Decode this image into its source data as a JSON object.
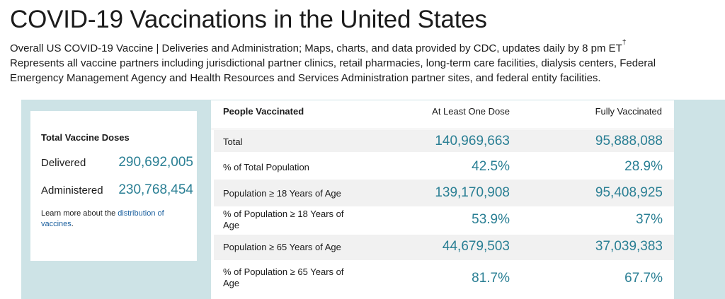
{
  "page": {
    "title": "COVID-19 Vaccinations in the United States",
    "subtitle_line1": "Overall US COVID-19 Vaccine | Deliveries and Administration; Maps, charts, and data provided by CDC, updates daily by 8 pm ET",
    "subtitle_dagger": "†",
    "subtitle_line2": "Represents all vaccine partners including jurisdictional partner clinics, retail pharmacies, long-term care facilities, dialysis centers, Federal",
    "subtitle_line3": "Emergency Management Agency and Health Resources and Services Administration partner sites, and federal entity facilities."
  },
  "doses": {
    "title": "Total Vaccine Doses",
    "delivered_label": "Delivered",
    "delivered_value": "290,692,005",
    "administered_label": "Administered",
    "administered_value": "230,768,454",
    "learn_more_prefix": "Learn more about the ",
    "learn_more_link": "distribution of vaccines",
    "learn_more_suffix": "."
  },
  "table": {
    "header_label": "People Vaccinated",
    "header_dose1": "At Least One Dose",
    "header_full": "Fully Vaccinated",
    "rows": [
      {
        "label": "Total",
        "dose1": "140,969,663",
        "full": "95,888,088"
      },
      {
        "label": "% of Total Population",
        "dose1": "42.5%",
        "full": "28.9%"
      },
      {
        "label": "Population ≥ 18 Years of Age",
        "dose1": "139,170,908",
        "full": "95,408,925"
      },
      {
        "label": "% of Population ≥ 18 Years of Age",
        "dose1": "53.9%",
        "full": "37%"
      },
      {
        "label": "Population ≥ 65 Years of Age",
        "dose1": "44,679,503",
        "full": "37,039,383"
      },
      {
        "label": "% of Population ≥ 65 Years of Age",
        "dose1": "81.7%",
        "full": "67.7%"
      }
    ]
  },
  "colors": {
    "accent_value": "#2a7f94",
    "panel_background": "#cde3e6",
    "link": "#1a5f9e",
    "row_shade": "#f1f1f1"
  }
}
